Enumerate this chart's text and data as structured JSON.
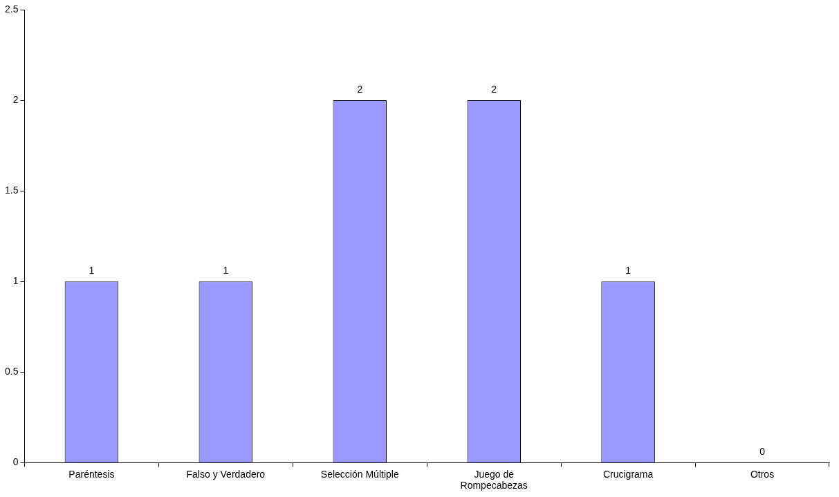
{
  "chart_data": {
    "type": "bar",
    "categories": [
      "Paréntesis",
      "Falso y Verdadero",
      "Selección Múltiple",
      "Juego de Rompecabezas",
      "Crucigrama",
      "Otros"
    ],
    "values": [
      1,
      1,
      2,
      2,
      1,
      0
    ],
    "color": "#9999ff",
    "ylim": [
      0,
      2.5
    ],
    "yticks": [
      0,
      0.5,
      1,
      1.5,
      2,
      2.5
    ],
    "grid": false,
    "legend": false,
    "data_labels": true
  }
}
